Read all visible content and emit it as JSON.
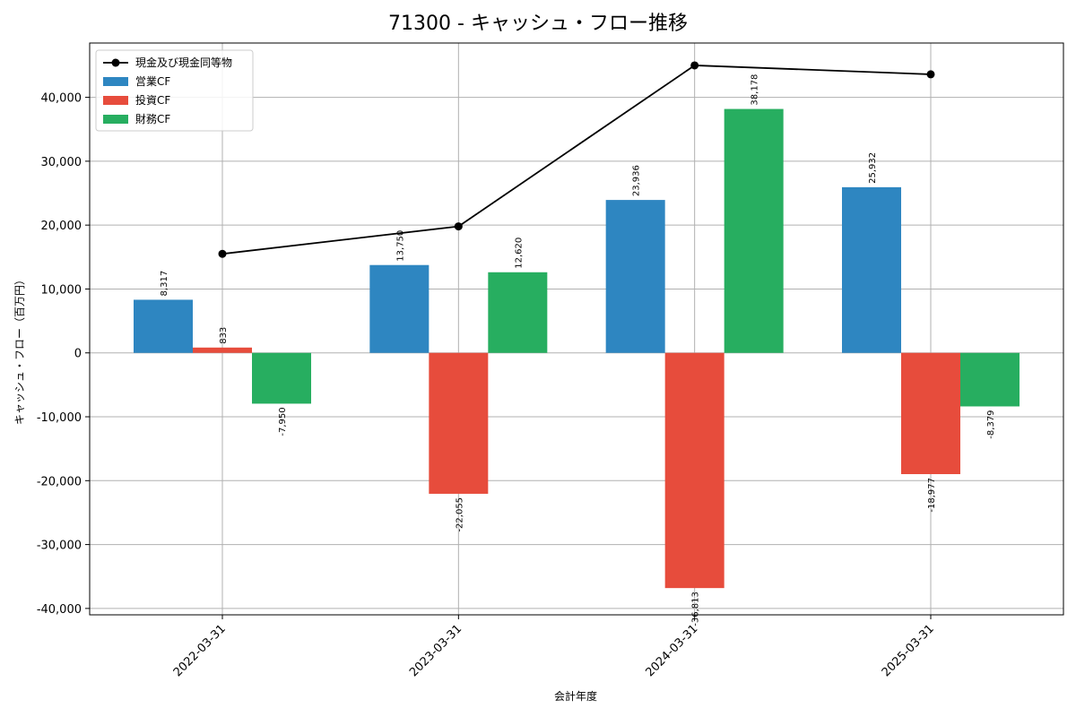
{
  "chart_data": {
    "type": "bar",
    "title": "71300 - キャッシュ・フロー推移",
    "xlabel": "会計年度",
    "ylabel": "キャッシュ・フロー（百万円）",
    "categories": [
      "2022-03-31",
      "2023-03-31",
      "2024-03-31",
      "2025-03-31"
    ],
    "ylim": [
      -41000,
      48500
    ],
    "yticks": [
      -40000,
      -30000,
      -20000,
      -10000,
      0,
      10000,
      20000,
      30000,
      40000
    ],
    "ytick_labels": [
      "-40,000",
      "-30,000",
      "-20,000",
      "-10,000",
      "0",
      "10,000",
      "20,000",
      "30,000",
      "40,000"
    ],
    "grid": true,
    "legend_position": "top-left",
    "series": [
      {
        "name": "営業CF",
        "kind": "bar",
        "color": "#2e86c1",
        "values": [
          8317,
          13750,
          23936,
          25932
        ],
        "labels": [
          "8,317",
          "13,750",
          "23,936",
          "25,932"
        ]
      },
      {
        "name": "投資CF",
        "kind": "bar",
        "color": "#e74c3c",
        "values": [
          833,
          -22055,
          -36813,
          -18977
        ],
        "labels": [
          "833",
          "-22,055",
          "-36,813",
          "-18,977"
        ]
      },
      {
        "name": "財務CF",
        "kind": "bar",
        "color": "#27ae60",
        "values": [
          -7950,
          12620,
          38178,
          -8379
        ],
        "labels": [
          "-7,950",
          "12,620",
          "38,178",
          "-8,379"
        ]
      }
    ],
    "line_series": {
      "name": "現金及び現金同等物",
      "color": "#000000",
      "values": [
        15500,
        19800,
        45000,
        43600
      ]
    }
  }
}
